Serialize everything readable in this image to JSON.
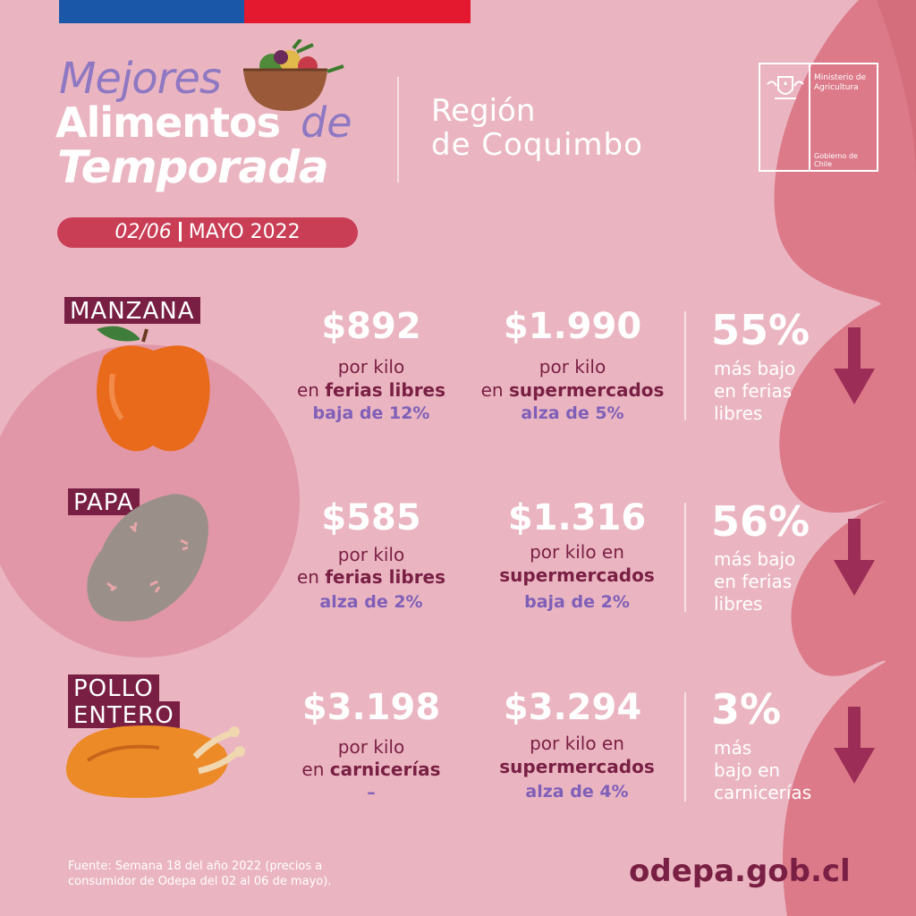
{
  "header": {
    "title_line1": "Mejores",
    "title_line2": "Alimentos",
    "title_line2_suffix": "de",
    "title_line3": "Temporada",
    "region_line1": "Región",
    "region_line2": "de Coquimbo",
    "ministry_name": "Ministerio de Agricultura",
    "government": "Gobierno de Chile"
  },
  "date": {
    "range": "02/06",
    "month": "MAYO 2022"
  },
  "products": [
    {
      "name": "MANZANA",
      "fair_price": "$892",
      "fair_unit": "por kilo",
      "fair_place_prefix": "en",
      "fair_place": "ferias libres",
      "fair_change": "baja de 12%",
      "super_price": "$1.990",
      "super_unit": "por kilo",
      "super_place_prefix": "en",
      "super_place": "supermercados",
      "super_change": "alza de 5%",
      "diff_pct": "55%",
      "diff_line1": "más bajo",
      "diff_line2": "en ferias",
      "diff_line3": "libres"
    },
    {
      "name": "PAPA",
      "fair_price": "$585",
      "fair_unit": "por kilo",
      "fair_place_prefix": "en",
      "fair_place": "ferias libres",
      "fair_change": "alza de 2%",
      "super_price": "$1.316",
      "super_unit": "por kilo en",
      "super_place": "supermercados",
      "super_change": "baja de 2%",
      "diff_pct": "56%",
      "diff_line1": "más bajo",
      "diff_line2": "en ferias",
      "diff_line3": "libres"
    },
    {
      "name_line1": "POLLO",
      "name_line2": "ENTERO",
      "fair_price": "$3.198",
      "fair_unit": "por kilo",
      "fair_place_prefix": "en",
      "fair_place": "carnicerías",
      "fair_change": "–",
      "super_price": "$3.294",
      "super_unit": "por kilo en",
      "super_place": "supermercados",
      "super_change": "alza de 4%",
      "diff_pct": "3%",
      "diff_line1": "más",
      "diff_line2": "bajo en",
      "diff_line3": "carnicerías"
    }
  ],
  "footer": {
    "source_line1": "Fuente: Semana 18 del año 2022 (precios a",
    "source_line2": "consumidor de Odepa del 02 al 06 de mayo).",
    "website": "odepa.gob.cl"
  },
  "colors": {
    "background": "#eab5c1",
    "label_bg": "#7a1f44",
    "accent_purple": "#7f5fb8",
    "date_pill": "#c93d55",
    "flag_blue": "#1a57a8",
    "flag_red": "#e4192f"
  },
  "icons": {
    "basket": "vegetable-basket-icon",
    "apple": "apple-icon",
    "potato": "potato-icon",
    "chicken": "roast-chicken-icon",
    "arrow": "down-arrow-icon",
    "shield": "chile-coat-of-arms-icon"
  }
}
